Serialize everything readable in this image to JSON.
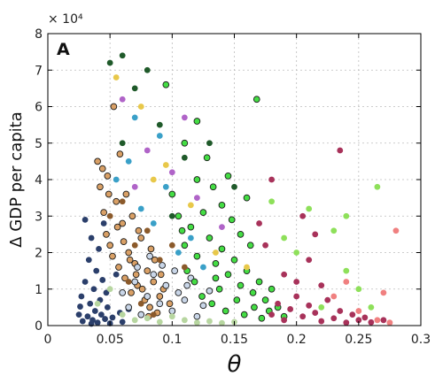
{
  "chart_data": {
    "type": "scatter",
    "panel_label": "A",
    "xlabel": "θ",
    "ylabel": "Δ GDP per capita",
    "y_multiplier_label": "× 10⁴",
    "xlim": [
      0,
      0.3
    ],
    "ylim": [
      0,
      80000
    ],
    "x_ticks": [
      0,
      0.05,
      0.1,
      0.15,
      0.2,
      0.25,
      0.3
    ],
    "x_tick_labels": [
      "0",
      "0.05",
      "0.1",
      "0.15",
      "0.2",
      "0.25",
      "0.3"
    ],
    "y_ticks": [
      0,
      10000,
      20000,
      30000,
      40000,
      50000,
      60000,
      70000,
      80000
    ],
    "y_tick_labels": [
      "0",
      "1",
      "2",
      "3",
      "4",
      "5",
      "6",
      "7",
      "8"
    ],
    "grid": true,
    "legend": "none",
    "series": [
      {
        "color": "#2b3f6b",
        "outlined": false,
        "points": [
          [
            0.025,
            3000
          ],
          [
            0.027,
            8000
          ],
          [
            0.028,
            1200
          ],
          [
            0.03,
            12000
          ],
          [
            0.032,
            2500
          ],
          [
            0.033,
            18000
          ],
          [
            0.034,
            6000
          ],
          [
            0.035,
            24000
          ],
          [
            0.036,
            1500
          ],
          [
            0.037,
            10000
          ],
          [
            0.038,
            4000
          ],
          [
            0.039,
            15000
          ],
          [
            0.04,
            800
          ],
          [
            0.041,
            21000
          ],
          [
            0.042,
            7000
          ],
          [
            0.043,
            3000
          ],
          [
            0.044,
            12500
          ],
          [
            0.045,
            28000
          ],
          [
            0.046,
            1800
          ],
          [
            0.047,
            9000
          ],
          [
            0.048,
            5000
          ],
          [
            0.05,
            600
          ],
          [
            0.052,
            2200
          ],
          [
            0.055,
            14000
          ],
          [
            0.058,
            3500
          ],
          [
            0.06,
            1000
          ],
          [
            0.065,
            4500
          ],
          [
            0.03,
            29000
          ],
          [
            0.026,
            5200
          ],
          [
            0.035,
            500
          ]
        ]
      },
      {
        "color": "#d9a066",
        "outlined": true,
        "points": [
          [
            0.04,
            45000
          ],
          [
            0.042,
            38000
          ],
          [
            0.045,
            31000
          ],
          [
            0.047,
            25000
          ],
          [
            0.05,
            22000
          ],
          [
            0.052,
            19000
          ],
          [
            0.055,
            34000
          ],
          [
            0.057,
            16000
          ],
          [
            0.06,
            28000
          ],
          [
            0.062,
            13000
          ],
          [
            0.065,
            20000
          ],
          [
            0.067,
            9000
          ],
          [
            0.07,
            17000
          ],
          [
            0.072,
            11000
          ],
          [
            0.075,
            24000
          ],
          [
            0.078,
            7000
          ],
          [
            0.08,
            15000
          ],
          [
            0.082,
            5000
          ],
          [
            0.085,
            12000
          ],
          [
            0.088,
            3500
          ],
          [
            0.09,
            8000
          ],
          [
            0.048,
            41000
          ],
          [
            0.053,
            60000
          ],
          [
            0.058,
            47000
          ],
          [
            0.063,
            36000
          ],
          [
            0.068,
            30000
          ],
          [
            0.073,
            26000
          ],
          [
            0.083,
            21000
          ],
          [
            0.093,
            10000
          ],
          [
            0.098,
            6000
          ],
          [
            0.044,
            43000
          ],
          [
            0.049,
            36000
          ],
          [
            0.056,
            27000
          ],
          [
            0.061,
            23000
          ],
          [
            0.066,
            18000
          ],
          [
            0.071,
            14000
          ],
          [
            0.076,
            10000
          ],
          [
            0.081,
            2500
          ],
          [
            0.086,
            18000
          ],
          [
            0.091,
            14000
          ]
        ]
      },
      {
        "color": "#c9d6e8",
        "outlined": true,
        "points": [
          [
            0.06,
            9000
          ],
          [
            0.065,
            5000
          ],
          [
            0.07,
            12000
          ],
          [
            0.075,
            3000
          ],
          [
            0.08,
            8000
          ],
          [
            0.085,
            14000
          ],
          [
            0.09,
            6000
          ],
          [
            0.095,
            11000
          ],
          [
            0.1,
            4000
          ],
          [
            0.105,
            9000
          ],
          [
            0.11,
            7000
          ],
          [
            0.115,
            13000
          ],
          [
            0.12,
            2500
          ],
          [
            0.125,
            5500
          ],
          [
            0.13,
            9500
          ],
          [
            0.072,
            16000
          ],
          [
            0.082,
            19000
          ],
          [
            0.092,
            16500
          ],
          [
            0.102,
            15000
          ],
          [
            0.112,
            11000
          ]
        ]
      },
      {
        "color": "#44dd44",
        "outlined": true,
        "points": [
          [
            0.1,
            36000
          ],
          [
            0.105,
            30000
          ],
          [
            0.11,
            22000
          ],
          [
            0.115,
            27000
          ],
          [
            0.12,
            19000
          ],
          [
            0.125,
            31000
          ],
          [
            0.13,
            24000
          ],
          [
            0.135,
            17000
          ],
          [
            0.14,
            21000
          ],
          [
            0.145,
            14000
          ],
          [
            0.15,
            18000
          ],
          [
            0.155,
            11000
          ],
          [
            0.16,
            15000
          ],
          [
            0.165,
            9000
          ],
          [
            0.17,
            12000
          ],
          [
            0.175,
            7000
          ],
          [
            0.18,
            10000
          ],
          [
            0.185,
            5000
          ],
          [
            0.128,
            46000
          ],
          [
            0.133,
            38000
          ],
          [
            0.14,
            33000
          ],
          [
            0.148,
            29000
          ],
          [
            0.155,
            25000
          ],
          [
            0.163,
            22000
          ],
          [
            0.168,
            62000
          ],
          [
            0.12,
            40000
          ],
          [
            0.108,
            26000
          ],
          [
            0.112,
            15000
          ],
          [
            0.118,
            12000
          ],
          [
            0.124,
            8000
          ],
          [
            0.132,
            6000
          ],
          [
            0.138,
            10000
          ],
          [
            0.143,
            4000
          ],
          [
            0.152,
            7000
          ],
          [
            0.158,
            3000
          ],
          [
            0.166,
            5000
          ],
          [
            0.172,
            2000
          ],
          [
            0.178,
            4000
          ],
          [
            0.19,
            2500
          ],
          [
            0.095,
            66000
          ],
          [
            0.11,
            50000
          ],
          [
            0.12,
            56000
          ],
          [
            0.16,
            35000
          ],
          [
            0.145,
            41000
          ],
          [
            0.135,
            13000
          ]
        ]
      },
      {
        "color": "#a8325a",
        "outlined": false,
        "points": [
          [
            0.18,
            3000
          ],
          [
            0.185,
            6000
          ],
          [
            0.19,
            1500
          ],
          [
            0.195,
            4500
          ],
          [
            0.2,
            8000
          ],
          [
            0.205,
            2500
          ],
          [
            0.21,
            5500
          ],
          [
            0.215,
            3500
          ],
          [
            0.22,
            1200
          ],
          [
            0.225,
            7000
          ],
          [
            0.23,
            2000
          ],
          [
            0.235,
            4000
          ],
          [
            0.24,
            800
          ],
          [
            0.245,
            3000
          ],
          [
            0.25,
            1500
          ],
          [
            0.255,
            2200
          ],
          [
            0.26,
            900
          ],
          [
            0.27,
            1500
          ],
          [
            0.2,
            12000
          ],
          [
            0.21,
            18000
          ],
          [
            0.22,
            11000
          ],
          [
            0.235,
            48000
          ],
          [
            0.205,
            30000
          ],
          [
            0.215,
            25000
          ],
          [
            0.19,
            14000
          ],
          [
            0.175,
            22000
          ],
          [
            0.18,
            40000
          ],
          [
            0.17,
            28000
          ]
        ]
      },
      {
        "color": "#8ee05a",
        "outlined": false,
        "points": [
          [
            0.2,
            20000
          ],
          [
            0.21,
            32000
          ],
          [
            0.22,
            5000
          ],
          [
            0.23,
            26000
          ],
          [
            0.24,
            15000
          ],
          [
            0.25,
            10000
          ],
          [
            0.26,
            5000
          ],
          [
            0.265,
            38000
          ],
          [
            0.19,
            24000
          ],
          [
            0.18,
            34000
          ],
          [
            0.24,
            30000
          ]
        ]
      },
      {
        "color": "#f08080",
        "outlined": false,
        "points": [
          [
            0.23,
            8000
          ],
          [
            0.25,
            4000
          ],
          [
            0.265,
            1500
          ],
          [
            0.275,
            800
          ],
          [
            0.28,
            26000
          ],
          [
            0.24,
            12000
          ],
          [
            0.27,
            9000
          ]
        ]
      },
      {
        "color": "#3aa0c8",
        "outlined": false,
        "points": [
          [
            0.055,
            40000
          ],
          [
            0.065,
            45000
          ],
          [
            0.075,
            32000
          ],
          [
            0.085,
            28000
          ],
          [
            0.095,
            38000
          ],
          [
            0.105,
            20000
          ],
          [
            0.115,
            24000
          ],
          [
            0.125,
            16000
          ],
          [
            0.09,
            52000
          ],
          [
            0.07,
            57000
          ]
        ]
      },
      {
        "color": "#b064c8",
        "outlined": false,
        "points": [
          [
            0.06,
            62000
          ],
          [
            0.08,
            48000
          ],
          [
            0.1,
            42000
          ],
          [
            0.12,
            35000
          ],
          [
            0.14,
            27000
          ],
          [
            0.11,
            57000
          ],
          [
            0.07,
            38000
          ]
        ]
      },
      {
        "color": "#1f5a2a",
        "outlined": false,
        "points": [
          [
            0.05,
            72000
          ],
          [
            0.07,
            65000
          ],
          [
            0.09,
            55000
          ],
          [
            0.11,
            46000
          ],
          [
            0.13,
            50000
          ],
          [
            0.15,
            38000
          ],
          [
            0.08,
            70000
          ],
          [
            0.06,
            50000
          ],
          [
            0.1,
            30000
          ],
          [
            0.06,
            74000
          ]
        ]
      },
      {
        "color": "#8b5a2b",
        "outlined": false,
        "points": [
          [
            0.05,
            30000
          ],
          [
            0.06,
            34000
          ],
          [
            0.07,
            22000
          ],
          [
            0.08,
            26000
          ],
          [
            0.09,
            18000
          ],
          [
            0.1,
            22000
          ],
          [
            0.11,
            16000
          ],
          [
            0.065,
            12000
          ],
          [
            0.075,
            6000
          ],
          [
            0.085,
            3000
          ]
        ]
      },
      {
        "color": "#e8c84a",
        "outlined": false,
        "points": [
          [
            0.055,
            68000
          ],
          [
            0.075,
            60000
          ],
          [
            0.095,
            44000
          ],
          [
            0.115,
            33000
          ],
          [
            0.135,
            20000
          ],
          [
            0.16,
            16000
          ],
          [
            0.085,
            40000
          ]
        ]
      },
      {
        "color": "#b7d6a0",
        "outlined": false,
        "points": [
          [
            0.04,
            6000
          ],
          [
            0.05,
            10000
          ],
          [
            0.06,
            3000
          ],
          [
            0.07,
            1500
          ],
          [
            0.08,
            2000
          ],
          [
            0.09,
            1000
          ],
          [
            0.1,
            2500
          ],
          [
            0.11,
            1500
          ],
          [
            0.12,
            800
          ],
          [
            0.13,
            1200
          ],
          [
            0.14,
            700
          ],
          [
            0.15,
            1000
          ]
        ]
      }
    ]
  }
}
